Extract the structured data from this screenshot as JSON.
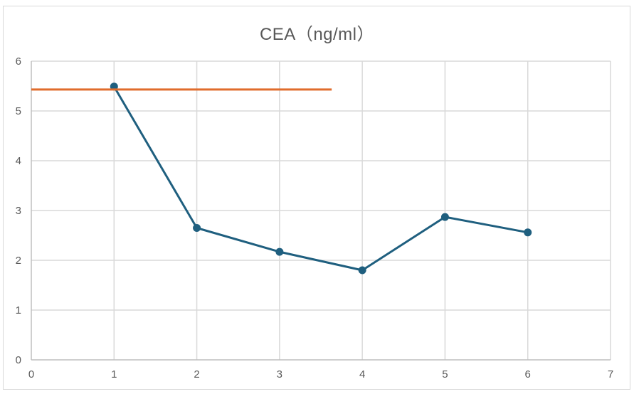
{
  "chart_data": {
    "type": "scatter",
    "title": "CEA（ng/ml）",
    "xlabel": "",
    "ylabel": "",
    "xlim": [
      0,
      7
    ],
    "ylim": [
      0,
      6
    ],
    "x_ticks": [
      0,
      1,
      2,
      3,
      4,
      5,
      6,
      7
    ],
    "y_ticks": [
      0,
      1,
      2,
      3,
      4,
      5,
      6
    ],
    "grid": true,
    "legend": "none",
    "series": [
      {
        "style": "line-with-markers",
        "color": "#1f5f7f",
        "points": [
          {
            "x": 1,
            "y": 5.49
          },
          {
            "x": 2,
            "y": 2.65
          },
          {
            "x": 3,
            "y": 2.17
          },
          {
            "x": 4,
            "y": 1.8
          },
          {
            "x": 5,
            "y": 2.87
          },
          {
            "x": 6,
            "y": 2.56
          }
        ]
      },
      {
        "style": "line",
        "color": "#e06c2c",
        "points": [
          {
            "x": 0,
            "y": 5.43
          },
          {
            "x": 3.63,
            "y": 5.43
          }
        ]
      }
    ]
  }
}
